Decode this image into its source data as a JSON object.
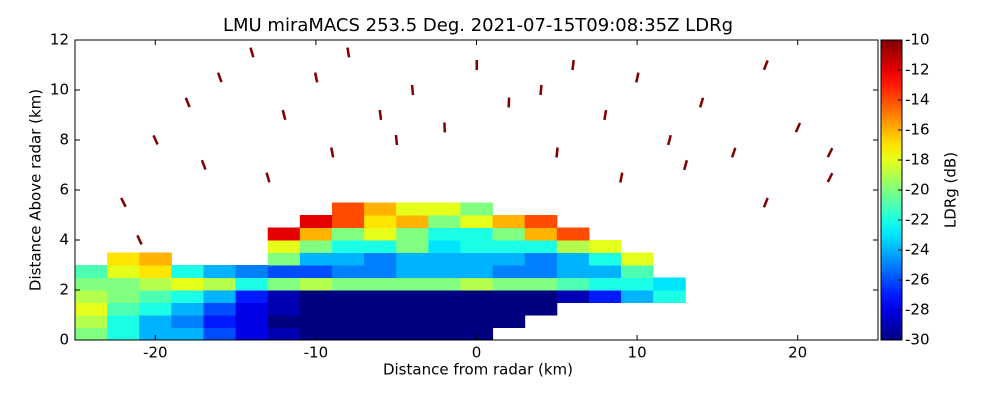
{
  "chart_data": {
    "type": "heatmap",
    "title": "LMU miraMACS 253.5 Deg. 2021-07-15T09:08:35Z  LDRg",
    "x_label": "Distance from radar (km)",
    "y_label": "Distance Above radar  (km)",
    "colorbar_label": "LDRg (dB)",
    "colormap": "jet",
    "xlim": [
      -25,
      25
    ],
    "ylim": [
      0,
      12
    ],
    "xticks": [
      -20,
      -10,
      0,
      10,
      20
    ],
    "yticks": [
      0,
      2,
      4,
      6,
      8,
      10,
      12
    ],
    "clim": [
      -30,
      -10
    ],
    "cticks": [
      -30,
      -28,
      -26,
      -24,
      -22,
      -20,
      -18,
      -16,
      -14,
      -12,
      -10
    ],
    "x_edges": [
      -25,
      -23,
      -21,
      -19,
      -17,
      -15,
      -13,
      -11,
      -9,
      -7,
      -5,
      -3,
      -1,
      1,
      3,
      5,
      7,
      9,
      11,
      13,
      15,
      17,
      19,
      21,
      23,
      25
    ],
    "y_edges": [
      0,
      0.5,
      1,
      1.5,
      2,
      2.5,
      3,
      3.5,
      4,
      4.5,
      5,
      5.5
    ],
    "z": [
      [
        -20,
        -22,
        -24,
        -24,
        -26,
        -28,
        -29,
        -30,
        -30,
        -30,
        -30,
        -30,
        -30,
        null,
        null,
        null,
        null,
        null,
        null,
        null,
        null,
        null,
        null,
        null,
        null
      ],
      [
        -19,
        -22,
        -24,
        -25,
        -27,
        -28,
        -30,
        -30,
        -30,
        -30,
        -30,
        -30,
        -30,
        -30,
        null,
        null,
        null,
        null,
        null,
        null,
        null,
        null,
        null,
        null,
        null
      ],
      [
        -18,
        -21,
        -22,
        -24,
        -26,
        -28,
        -29,
        -30,
        -30,
        -30,
        -30,
        -30,
        -30,
        -30,
        -30,
        null,
        null,
        null,
        null,
        null,
        null,
        null,
        null,
        null,
        null
      ],
      [
        -19,
        -20,
        -21,
        -22,
        -24,
        -27,
        -29,
        -30,
        -30,
        -30,
        -30,
        -30,
        -30,
        -30,
        -30,
        -29,
        -27,
        -24,
        -22,
        null,
        null,
        null,
        null,
        null,
        null
      ],
      [
        -20,
        -20,
        -19,
        -18,
        -19,
        -22,
        -20,
        -19,
        -20,
        -20,
        -20,
        -20,
        -19,
        -20,
        -20,
        -21,
        -22,
        -22,
        -23,
        null,
        null,
        null,
        null,
        null,
        null
      ],
      [
        -21,
        -18,
        -17,
        -22,
        -24,
        -25,
        -26,
        -26,
        -25,
        -25,
        -24,
        -24,
        -24,
        -25,
        -25,
        -24,
        -24,
        -21,
        null,
        null,
        null,
        null,
        null,
        null,
        null
      ],
      [
        null,
        -17,
        -16,
        null,
        null,
        null,
        -20,
        -24,
        -24,
        -25,
        -24,
        -24,
        -24,
        -24,
        -25,
        -24,
        -22,
        -18,
        null,
        null,
        null,
        null,
        null,
        null,
        null
      ],
      [
        null,
        null,
        null,
        null,
        null,
        null,
        -18,
        -20,
        -22,
        -22,
        -20,
        -23,
        -22,
        -22,
        -22,
        -19,
        -18,
        null,
        null,
        null,
        null,
        null,
        null,
        null,
        null
      ],
      [
        null,
        null,
        null,
        null,
        null,
        null,
        -12,
        -16,
        -20,
        -18,
        -20,
        -22,
        -22,
        -20,
        -16,
        -14,
        null,
        null,
        null,
        null,
        null,
        null,
        null,
        null,
        null
      ],
      [
        null,
        null,
        null,
        null,
        null,
        null,
        null,
        -12,
        -14,
        -17,
        -16,
        -20,
        -18,
        -16,
        -14,
        null,
        null,
        null,
        null,
        null,
        null,
        null,
        null,
        null,
        null
      ],
      [
        null,
        null,
        null,
        null,
        null,
        null,
        null,
        null,
        -14,
        -16,
        -18,
        -18,
        -20,
        null,
        null,
        null,
        null,
        null,
        null,
        null,
        null,
        null,
        null,
        null,
        null
      ]
    ],
    "speckles": {
      "x": [
        -22,
        -20,
        -18,
        -16,
        -14,
        -12,
        -10,
        -8,
        -6,
        -4,
        -2,
        0,
        2,
        4,
        6,
        8,
        10,
        12,
        14,
        16,
        18,
        20,
        22,
        -17,
        -13,
        -9,
        -5,
        5,
        9,
        13,
        18,
        22,
        -21
      ],
      "y": [
        5.5,
        8,
        9.5,
        10.5,
        11.5,
        9,
        10.5,
        11.5,
        9,
        10,
        8.5,
        11,
        9.5,
        10,
        11,
        9,
        10.5,
        8,
        9.5,
        7.5,
        11,
        8.5,
        6.5,
        7,
        6.5,
        7.5,
        8,
        7.5,
        6.5,
        7,
        5.5,
        7.5,
        4
      ],
      "values": [
        -10,
        -10,
        -10,
        -10,
        -10,
        -10,
        -10,
        -10,
        -10,
        -10,
        -10,
        -10,
        -10,
        -10,
        -10,
        -10,
        -10,
        -10,
        -10,
        -10,
        -10,
        -10,
        -10,
        -10,
        -10,
        -10,
        -10,
        -10,
        -10,
        -10,
        -10,
        -10,
        -10
      ]
    }
  }
}
